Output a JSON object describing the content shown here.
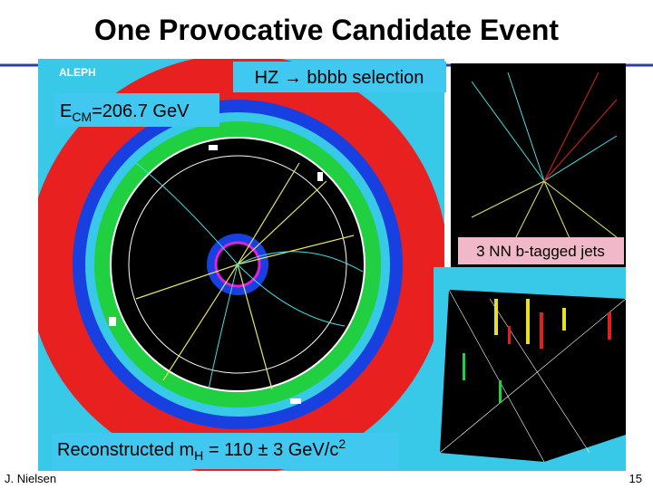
{
  "header": {
    "title": "One Provocative Candidate Event"
  },
  "display": {
    "logo": "ALEPH"
  },
  "labels": {
    "selection": "HZ → bbbb selection",
    "ecm": {
      "symbol": "E",
      "sub": "CM",
      "rest": "=206.7 GeV"
    },
    "jets": "3 NN b-tagged jets",
    "mass": {
      "text": "Reconstructed m",
      "sub": "H",
      "rest": " = 110 ± 3 GeV/c",
      "sup": "2"
    }
  },
  "footer": {
    "author": "J. Nielsen",
    "page": "15"
  }
}
